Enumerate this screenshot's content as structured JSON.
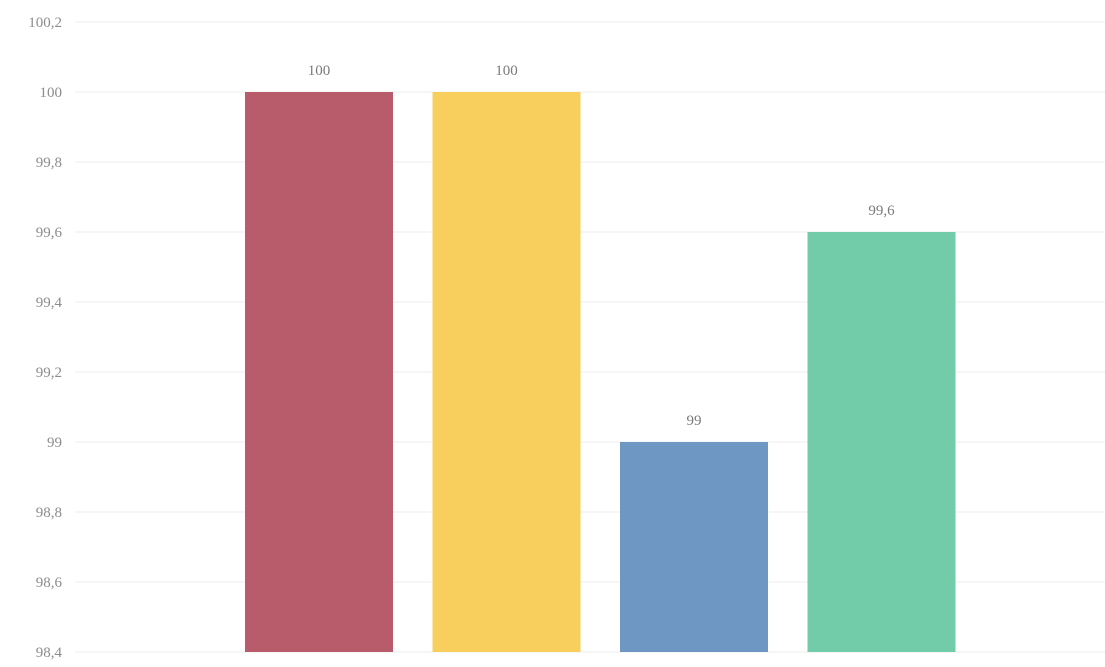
{
  "chart_data": {
    "type": "bar",
    "categories": [
      "",
      "",
      "",
      ""
    ],
    "values": [
      100,
      100,
      99,
      99.6
    ],
    "value_labels": [
      "100",
      "100",
      "99",
      "99,6"
    ],
    "colors": [
      "#b85b6a",
      "#f8cf5c",
      "#6e97c3",
      "#72ccaa"
    ],
    "title": "",
    "xlabel": "",
    "ylabel": "",
    "ylim": [
      98.4,
      100.2
    ],
    "y_ticks": [
      98.4,
      98.6,
      98.8,
      99,
      99.2,
      99.4,
      99.6,
      99.8,
      100,
      100.2
    ],
    "y_tick_labels": [
      "98,4",
      "98,6",
      "98,8",
      "99",
      "99,2",
      "99,4",
      "99,6",
      "99,8",
      "100",
      "100,2"
    ],
    "grid": true,
    "legend": "none"
  }
}
